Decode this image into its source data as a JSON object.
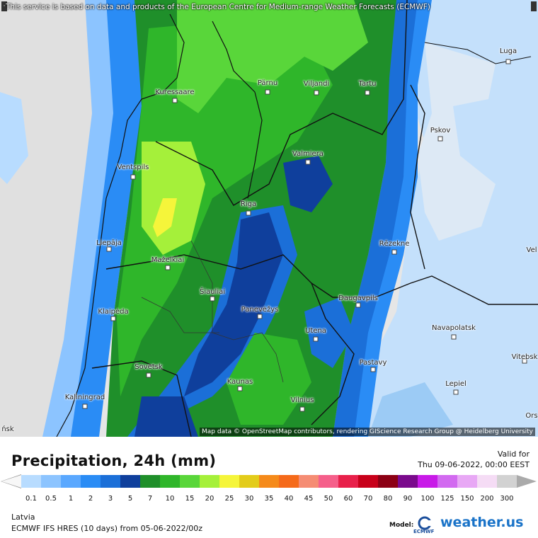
{
  "map": {
    "notice": "This service is based on data and products of the European Centre for Medium-range Weather Forecasts (ECMWF)",
    "attribution": "Map data © OpenStreetMap contributors, rendering GIScience Research Group @ Heidelberg University",
    "cities": [
      {
        "id": "luga",
        "label": "Luga"
      },
      {
        "id": "parnu",
        "label": "Pärnu"
      },
      {
        "id": "viljandi",
        "label": "Viljandi"
      },
      {
        "id": "tartu",
        "label": "Tartu"
      },
      {
        "id": "kuressaare",
        "label": "Kuressaare"
      },
      {
        "id": "pskov",
        "label": "Pskov"
      },
      {
        "id": "valmiera",
        "label": "Valmiera"
      },
      {
        "id": "ventspils",
        "label": "Ventspils"
      },
      {
        "id": "riga",
        "label": "Riga"
      },
      {
        "id": "liepaja",
        "label": "Liepāja"
      },
      {
        "id": "rezekne",
        "label": "Rēzekne"
      },
      {
        "id": "velikiye",
        "label": "Vel"
      },
      {
        "id": "mazeikiai",
        "label": "Mažeikiai"
      },
      {
        "id": "siauliai",
        "label": "Šiauliai"
      },
      {
        "id": "klaipeda",
        "label": "Klaipėda"
      },
      {
        "id": "panevezys",
        "label": "Panevėžys"
      },
      {
        "id": "daugavpils",
        "label": "Daugavpils"
      },
      {
        "id": "navapolatsk",
        "label": "Navapolatsk"
      },
      {
        "id": "utena",
        "label": "Utena"
      },
      {
        "id": "vitebsk",
        "label": "Vitebsk"
      },
      {
        "id": "sovetsk",
        "label": "Sovetsk"
      },
      {
        "id": "pastavy",
        "label": "Pastavy"
      },
      {
        "id": "kaunas",
        "label": "Kaunas"
      },
      {
        "id": "lepiel",
        "label": "Lepiel"
      },
      {
        "id": "kaliningrad",
        "label": "Kaliningrad"
      },
      {
        "id": "vilnius",
        "label": "Vilnius"
      },
      {
        "id": "orsha",
        "label": "Ors"
      },
      {
        "id": "nsk",
        "label": "ńsk"
      }
    ]
  },
  "legend": {
    "title": "Precipitation, 24h (mm)",
    "valid_label": "Valid for",
    "valid_time": "Thu 09-06-2022, 00:00 EEST",
    "ticks": [
      "0.1",
      "0.5",
      "1",
      "2",
      "3",
      "5",
      "7",
      "10",
      "15",
      "20",
      "25",
      "30",
      "35",
      "40",
      "45",
      "50",
      "60",
      "70",
      "80",
      "90",
      "100",
      "125",
      "150",
      "200",
      "300"
    ],
    "colors": [
      "#b8dcff",
      "#8cc4ff",
      "#5aa8ff",
      "#2a8cf5",
      "#1b6fd8",
      "#0f3f9c",
      "#1f8f2a",
      "#2fb62a",
      "#59d63a",
      "#a5f03a",
      "#f5f53a",
      "#e3cc1a",
      "#f58a1a",
      "#f56a1a",
      "#f58c73",
      "#f55f8a",
      "#e8204a",
      "#c8001a",
      "#8c0014",
      "#7a0a8c",
      "#c81ae8",
      "#d26af0",
      "#e8a8f5",
      "#f5dcf5",
      "#d2d2d2"
    ],
    "region": "Latvia",
    "model_run": "ECMWF IFS HRES (10 days) from 05-06-2022/00z",
    "model_label": "Model:",
    "model_org": "ECMWF",
    "brand": "weather.us"
  }
}
